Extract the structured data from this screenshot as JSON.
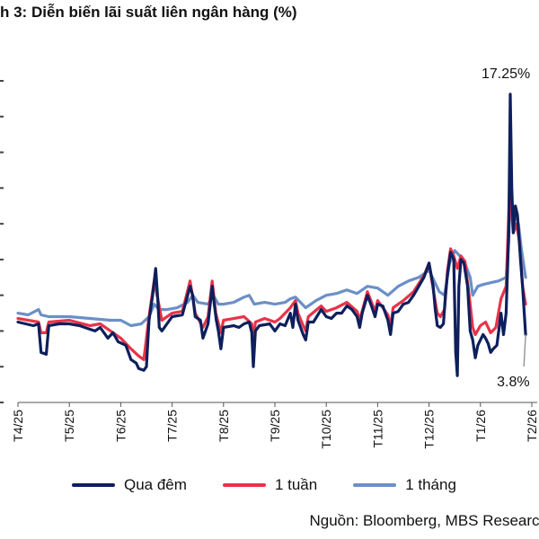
{
  "page": {
    "title": "h 3: Diễn biến lãi suất liên ngân hàng (%)",
    "source": "Nguồn: Bloomberg, MBS Research"
  },
  "colors": {
    "qua_dem": "#0d1f5c",
    "tuan": "#e8334a",
    "thang": "#6b8fc8"
  },
  "chart_data": {
    "type": "line",
    "title": "h 3: Diễn biến lãi suất liên ngân hàng (%)",
    "xlabel": "",
    "ylabel": "",
    "ylim": [
      0,
      18
    ],
    "grid": false,
    "legend_position": "bottom",
    "xlim": [
      0,
      10
    ],
    "categories": [
      "T4/25",
      "T5/25",
      "T6/25",
      "T7/25",
      "T8/25",
      "T9/25",
      "T10/25",
      "T11/25",
      "T12/25",
      "T1/26",
      "T2/26"
    ],
    "annotations": [
      {
        "text": "17.25%",
        "x": 9.58,
        "y": 17.25
      },
      {
        "text": "3.8%",
        "x": 9.88,
        "y": 3.8
      }
    ],
    "series": [
      {
        "name": "Qua đêm",
        "color": "#0d1f5c",
        "points": [
          [
            0.0,
            4.5
          ],
          [
            0.15,
            4.4
          ],
          [
            0.3,
            4.3
          ],
          [
            0.4,
            4.4
          ],
          [
            0.45,
            2.8
          ],
          [
            0.55,
            2.7
          ],
          [
            0.6,
            4.3
          ],
          [
            0.8,
            4.4
          ],
          [
            1.0,
            4.4
          ],
          [
            1.2,
            4.3
          ],
          [
            1.4,
            4.1
          ],
          [
            1.5,
            4.0
          ],
          [
            1.6,
            4.2
          ],
          [
            1.75,
            3.6
          ],
          [
            1.85,
            3.9
          ],
          [
            1.95,
            3.4
          ],
          [
            2.1,
            3.2
          ],
          [
            2.2,
            2.4
          ],
          [
            2.3,
            2.2
          ],
          [
            2.35,
            1.9
          ],
          [
            2.45,
            1.8
          ],
          [
            2.5,
            2.0
          ],
          [
            2.55,
            4.6
          ],
          [
            2.62,
            6.0
          ],
          [
            2.68,
            7.5
          ],
          [
            2.72,
            5.8
          ],
          [
            2.75,
            4.2
          ],
          [
            2.8,
            4.0
          ],
          [
            3.0,
            4.8
          ],
          [
            3.2,
            4.9
          ],
          [
            3.35,
            6.5
          ],
          [
            3.4,
            6.0
          ],
          [
            3.45,
            4.8
          ],
          [
            3.55,
            4.6
          ],
          [
            3.6,
            3.6
          ],
          [
            3.7,
            4.4
          ],
          [
            3.78,
            6.5
          ],
          [
            3.82,
            5.5
          ],
          [
            3.86,
            4.6
          ],
          [
            3.9,
            4.0
          ],
          [
            3.95,
            3.0
          ],
          [
            4.0,
            4.2
          ],
          [
            4.2,
            4.3
          ],
          [
            4.3,
            4.2
          ],
          [
            4.4,
            4.4
          ],
          [
            4.5,
            4.5
          ],
          [
            4.55,
            3.9
          ],
          [
            4.58,
            2.0
          ],
          [
            4.62,
            4.0
          ],
          [
            4.7,
            4.3
          ],
          [
            4.9,
            4.4
          ],
          [
            5.0,
            4.0
          ],
          [
            5.1,
            4.4
          ],
          [
            5.2,
            4.3
          ],
          [
            5.3,
            5.0
          ],
          [
            5.35,
            4.2
          ],
          [
            5.4,
            5.5
          ],
          [
            5.45,
            4.6
          ],
          [
            5.55,
            3.8
          ],
          [
            5.6,
            3.5
          ],
          [
            5.65,
            4.5
          ],
          [
            5.75,
            4.5
          ],
          [
            5.9,
            5.2
          ],
          [
            6.0,
            4.8
          ],
          [
            6.1,
            4.7
          ],
          [
            6.2,
            5.0
          ],
          [
            6.3,
            5.0
          ],
          [
            6.4,
            5.4
          ],
          [
            6.5,
            5.2
          ],
          [
            6.6,
            4.8
          ],
          [
            6.65,
            4.2
          ],
          [
            6.7,
            5.0
          ],
          [
            6.8,
            6.0
          ],
          [
            6.88,
            5.4
          ],
          [
            6.95,
            4.8
          ],
          [
            7.0,
            5.5
          ],
          [
            7.1,
            5.4
          ],
          [
            7.2,
            4.6
          ],
          [
            7.25,
            3.8
          ],
          [
            7.3,
            5.0
          ],
          [
            7.4,
            5.1
          ],
          [
            7.5,
            5.5
          ],
          [
            7.6,
            5.6
          ],
          [
            7.7,
            6.0
          ],
          [
            7.8,
            6.5
          ],
          [
            7.9,
            7.0
          ],
          [
            8.0,
            7.8
          ],
          [
            8.08,
            6.5
          ],
          [
            8.12,
            5.2
          ],
          [
            8.16,
            4.3
          ],
          [
            8.22,
            4.2
          ],
          [
            8.28,
            4.4
          ],
          [
            8.32,
            6.0
          ],
          [
            8.36,
            7.2
          ],
          [
            8.42,
            8.4
          ],
          [
            8.48,
            8.0
          ],
          [
            8.52,
            2.8
          ],
          [
            8.55,
            1.5
          ],
          [
            8.58,
            6.5
          ],
          [
            8.62,
            8.0
          ],
          [
            8.68,
            7.8
          ],
          [
            8.75,
            6.5
          ],
          [
            8.8,
            4.0
          ],
          [
            8.85,
            3.5
          ],
          [
            8.9,
            2.5
          ],
          [
            8.95,
            3.2
          ],
          [
            9.0,
            3.5
          ],
          [
            9.05,
            3.8
          ],
          [
            9.1,
            3.6
          ],
          [
            9.15,
            3.3
          ],
          [
            9.2,
            2.8
          ],
          [
            9.25,
            3.0
          ],
          [
            9.32,
            3.2
          ],
          [
            9.4,
            5.0
          ],
          [
            9.45,
            3.8
          ],
          [
            9.5,
            5.0
          ],
          [
            9.55,
            9.5
          ],
          [
            9.58,
            17.25
          ],
          [
            9.61,
            12.0
          ],
          [
            9.64,
            9.5
          ],
          [
            9.68,
            11.0
          ],
          [
            9.72,
            10.5
          ],
          [
            9.78,
            8.0
          ],
          [
            9.82,
            6.5
          ],
          [
            9.88,
            3.8
          ]
        ]
      },
      {
        "name": "1 tuần",
        "color": "#e8334a",
        "points": [
          [
            0.0,
            4.7
          ],
          [
            0.2,
            4.6
          ],
          [
            0.4,
            4.5
          ],
          [
            0.45,
            3.9
          ],
          [
            0.55,
            3.9
          ],
          [
            0.6,
            4.5
          ],
          [
            1.0,
            4.6
          ],
          [
            1.4,
            4.3
          ],
          [
            1.6,
            4.4
          ],
          [
            1.8,
            4.0
          ],
          [
            2.0,
            3.6
          ],
          [
            2.2,
            3.0
          ],
          [
            2.35,
            2.6
          ],
          [
            2.45,
            2.4
          ],
          [
            2.55,
            4.8
          ],
          [
            2.65,
            6.8
          ],
          [
            2.72,
            5.8
          ],
          [
            2.8,
            4.6
          ],
          [
            3.0,
            5.0
          ],
          [
            3.2,
            5.1
          ],
          [
            3.35,
            6.8
          ],
          [
            3.45,
            5.0
          ],
          [
            3.6,
            4.2
          ],
          [
            3.7,
            4.8
          ],
          [
            3.78,
            6.8
          ],
          [
            3.85,
            5.0
          ],
          [
            3.95,
            3.9
          ],
          [
            4.0,
            4.6
          ],
          [
            4.4,
            4.8
          ],
          [
            4.55,
            4.4
          ],
          [
            4.58,
            3.4
          ],
          [
            4.62,
            4.5
          ],
          [
            4.8,
            4.7
          ],
          [
            5.0,
            4.5
          ],
          [
            5.1,
            4.7
          ],
          [
            5.3,
            5.3
          ],
          [
            5.4,
            5.7
          ],
          [
            5.45,
            5.0
          ],
          [
            5.55,
            4.3
          ],
          [
            5.6,
            4.0
          ],
          [
            5.65,
            4.8
          ],
          [
            5.9,
            5.4
          ],
          [
            6.0,
            5.1
          ],
          [
            6.2,
            5.3
          ],
          [
            6.4,
            5.6
          ],
          [
            6.6,
            5.1
          ],
          [
            6.65,
            4.6
          ],
          [
            6.8,
            6.2
          ],
          [
            6.95,
            5.1
          ],
          [
            7.0,
            5.7
          ],
          [
            7.2,
            4.9
          ],
          [
            7.25,
            4.2
          ],
          [
            7.3,
            5.3
          ],
          [
            7.5,
            5.7
          ],
          [
            7.7,
            6.2
          ],
          [
            7.9,
            7.1
          ],
          [
            8.0,
            7.8
          ],
          [
            8.1,
            6.0
          ],
          [
            8.16,
            5.0
          ],
          [
            8.22,
            4.8
          ],
          [
            8.3,
            5.2
          ],
          [
            8.36,
            7.4
          ],
          [
            8.42,
            8.6
          ],
          [
            8.48,
            8.2
          ],
          [
            8.55,
            7.5
          ],
          [
            8.62,
            8.2
          ],
          [
            8.7,
            7.9
          ],
          [
            8.8,
            5.5
          ],
          [
            8.85,
            4.2
          ],
          [
            8.9,
            3.8
          ],
          [
            9.0,
            4.3
          ],
          [
            9.1,
            4.5
          ],
          [
            9.2,
            3.9
          ],
          [
            9.3,
            4.2
          ],
          [
            9.4,
            5.8
          ],
          [
            9.5,
            6.5
          ],
          [
            9.55,
            10.5
          ],
          [
            9.58,
            13.0
          ],
          [
            9.61,
            10.5
          ],
          [
            9.64,
            9.5
          ],
          [
            9.7,
            10.0
          ],
          [
            9.76,
            9.0
          ],
          [
            9.82,
            6.5
          ],
          [
            9.88,
            5.5
          ]
        ]
      },
      {
        "name": "1 tháng",
        "color": "#6b8fc8",
        "points": [
          [
            0.0,
            5.0
          ],
          [
            0.2,
            4.9
          ],
          [
            0.4,
            5.2
          ],
          [
            0.45,
            4.9
          ],
          [
            0.6,
            4.8
          ],
          [
            1.0,
            4.8
          ],
          [
            1.4,
            4.7
          ],
          [
            1.8,
            4.6
          ],
          [
            2.0,
            4.6
          ],
          [
            2.2,
            4.3
          ],
          [
            2.4,
            4.4
          ],
          [
            2.55,
            4.8
          ],
          [
            2.65,
            5.5
          ],
          [
            2.75,
            5.2
          ],
          [
            2.9,
            5.2
          ],
          [
            3.1,
            5.3
          ],
          [
            3.3,
            5.6
          ],
          [
            3.4,
            6.0
          ],
          [
            3.5,
            5.6
          ],
          [
            3.7,
            5.5
          ],
          [
            3.8,
            6.0
          ],
          [
            3.9,
            5.5
          ],
          [
            4.0,
            5.5
          ],
          [
            4.2,
            5.6
          ],
          [
            4.4,
            5.9
          ],
          [
            4.5,
            6.0
          ],
          [
            4.6,
            5.5
          ],
          [
            4.8,
            5.6
          ],
          [
            5.0,
            5.5
          ],
          [
            5.2,
            5.6
          ],
          [
            5.3,
            5.8
          ],
          [
            5.4,
            5.9
          ],
          [
            5.6,
            5.3
          ],
          [
            5.8,
            5.7
          ],
          [
            6.0,
            6.0
          ],
          [
            6.2,
            6.1
          ],
          [
            6.4,
            6.3
          ],
          [
            6.6,
            6.1
          ],
          [
            6.8,
            6.5
          ],
          [
            7.0,
            6.4
          ],
          [
            7.2,
            6.0
          ],
          [
            7.4,
            6.5
          ],
          [
            7.6,
            6.8
          ],
          [
            7.8,
            7.0
          ],
          [
            8.0,
            7.4
          ],
          [
            8.2,
            6.2
          ],
          [
            8.3,
            6.0
          ],
          [
            8.4,
            7.8
          ],
          [
            8.5,
            8.5
          ],
          [
            8.6,
            8.2
          ],
          [
            8.7,
            7.8
          ],
          [
            8.8,
            7.0
          ],
          [
            8.85,
            6.0
          ],
          [
            8.95,
            6.5
          ],
          [
            9.05,
            6.6
          ],
          [
            9.2,
            6.7
          ],
          [
            9.35,
            6.8
          ],
          [
            9.5,
            7.0
          ],
          [
            9.55,
            9.0
          ],
          [
            9.58,
            12.0
          ],
          [
            9.62,
            11.0
          ],
          [
            9.68,
            10.5
          ],
          [
            9.74,
            10.0
          ],
          [
            9.8,
            8.5
          ],
          [
            9.88,
            7.0
          ]
        ]
      }
    ]
  }
}
